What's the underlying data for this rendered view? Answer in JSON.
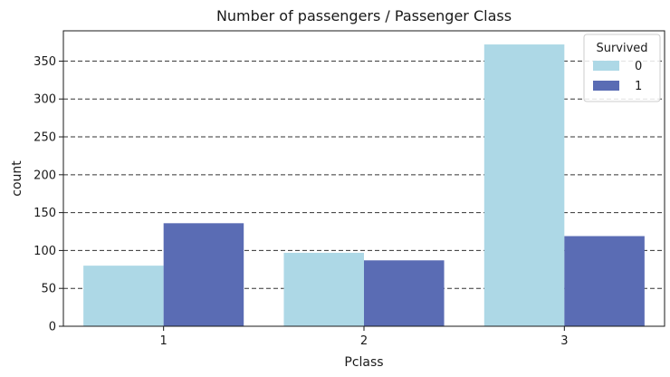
{
  "chart_data": {
    "type": "bar",
    "title": "Number of passengers / Passenger Class",
    "xlabel": "Pclass",
    "ylabel": "count",
    "categories": [
      "1",
      "2",
      "3"
    ],
    "series": [
      {
        "name": "0",
        "values": [
          80,
          97,
          372
        ],
        "color": "#add8e6"
      },
      {
        "name": "1",
        "values": [
          136,
          87,
          119
        ],
        "color": "#5a6cb4"
      }
    ],
    "ylim": [
      0,
      390
    ],
    "yticks": [
      0,
      50,
      100,
      150,
      200,
      250,
      300,
      350
    ],
    "grid": "horizontal-dashed",
    "legend": {
      "title": "Survived",
      "placement": "top-right"
    }
  }
}
